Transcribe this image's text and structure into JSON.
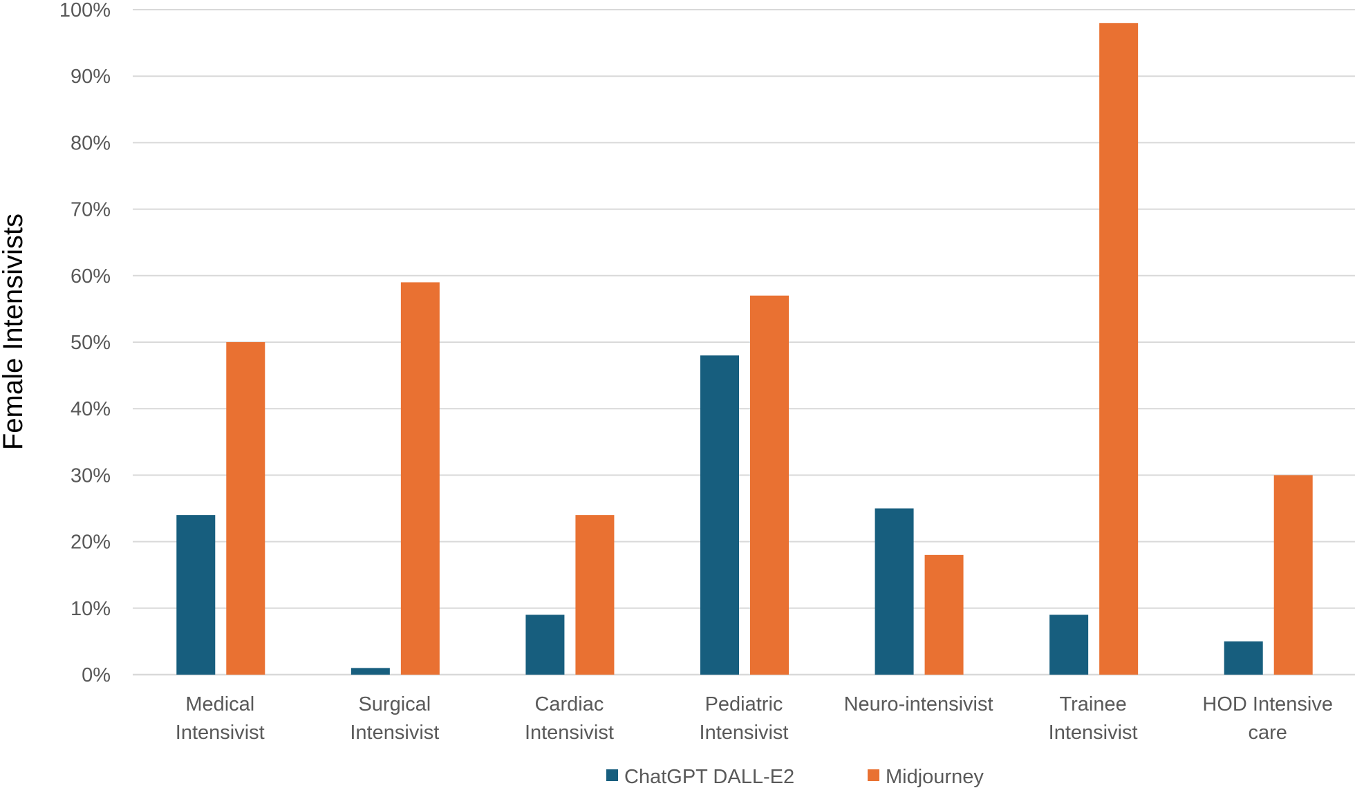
{
  "chart_data": {
    "type": "bar",
    "title": "",
    "xlabel": "",
    "ylabel": "Female Intensivists",
    "ylim": [
      0,
      100
    ],
    "yticks": [
      0,
      10,
      20,
      30,
      40,
      50,
      60,
      70,
      80,
      90,
      100
    ],
    "ytick_labels": [
      "0%",
      "10%",
      "20%",
      "30%",
      "40%",
      "50%",
      "60%",
      "70%",
      "80%",
      "90%",
      "100%"
    ],
    "grid": true,
    "legend_position": "bottom",
    "categories": [
      [
        "Medical",
        "Intensivist"
      ],
      [
        "Surgical",
        "Intensivist"
      ],
      [
        "Cardiac",
        "Intensivist"
      ],
      [
        "Pediatric",
        "Intensivist"
      ],
      [
        "Neuro-intensivist"
      ],
      [
        "Trainee",
        "Intensivist"
      ],
      [
        "HOD Intensive",
        "care"
      ]
    ],
    "series": [
      {
        "name": "ChatGPT DALL-E2",
        "color": "#175e7e",
        "values": [
          24,
          1,
          9,
          48,
          25,
          9,
          5
        ]
      },
      {
        "name": "Midjourney",
        "color": "#e97132",
        "values": [
          50,
          59,
          24,
          57,
          18,
          98,
          30
        ]
      }
    ]
  }
}
